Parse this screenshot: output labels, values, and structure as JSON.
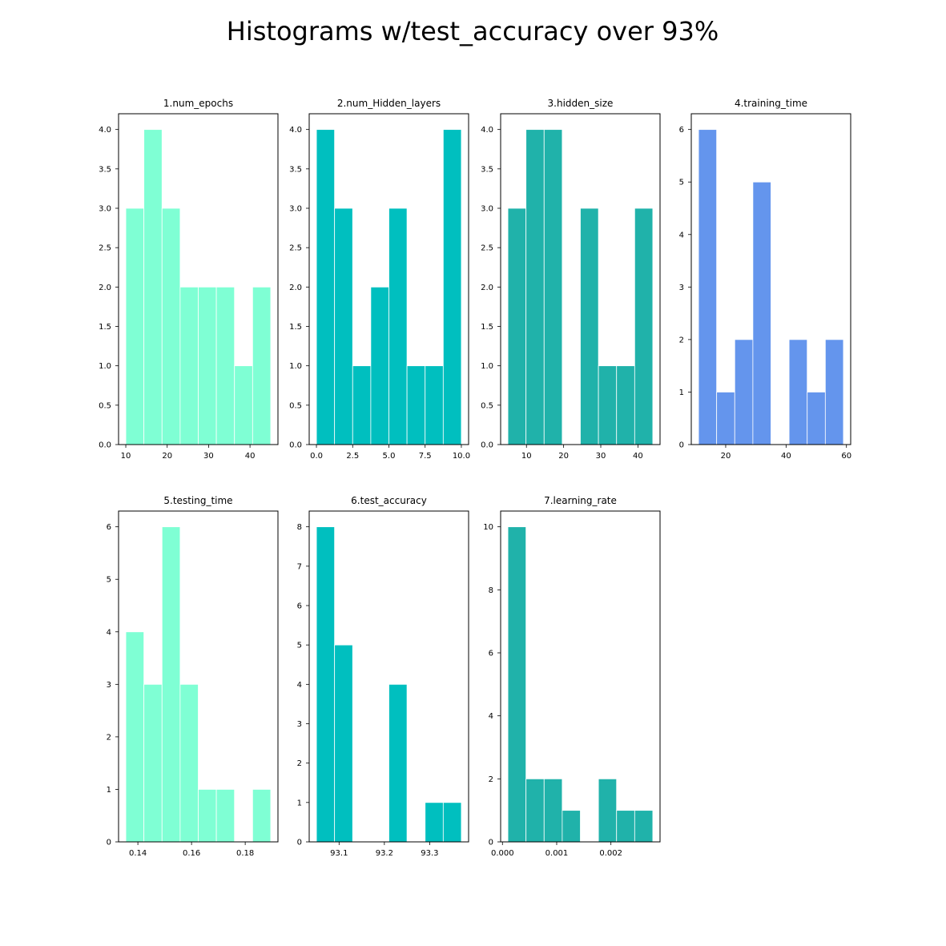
{
  "figure": {
    "suptitle": "Histograms w/test_accuracy over 93%"
  },
  "chart_data": [
    {
      "type": "bar",
      "title": "1.num_epochs",
      "xlabel": "",
      "ylabel": "",
      "color": "#7fffd4",
      "bin_edges": [
        10,
        14.375,
        18.75,
        23.125,
        27.5,
        31.875,
        36.25,
        40.625,
        45
      ],
      "values": [
        3,
        4,
        3,
        2,
        2,
        2,
        1,
        2
      ],
      "xlim": [
        8.25,
        46.75
      ],
      "ylim": [
        0,
        4.2
      ],
      "xticks": [
        10,
        20,
        30,
        40
      ],
      "xtick_labels": [
        "10",
        "20",
        "30",
        "40"
      ],
      "yticks": [
        0,
        0.5,
        1,
        1.5,
        2,
        2.5,
        3,
        3.5,
        4
      ],
      "ytick_labels": [
        "0.0",
        "0.5",
        "1.0",
        "1.5",
        "2.0",
        "2.5",
        "3.0",
        "3.5",
        "4.0"
      ],
      "grid": false
    },
    {
      "type": "bar",
      "title": "2.num_Hidden_layers",
      "xlabel": "",
      "ylabel": "",
      "color": "#00bfbf",
      "bin_edges": [
        0,
        1.25,
        2.5,
        3.75,
        5,
        6.25,
        7.5,
        8.75,
        10
      ],
      "values": [
        4,
        3,
        1,
        2,
        3,
        1,
        1,
        4
      ],
      "xlim": [
        -0.5,
        10.5
      ],
      "ylim": [
        0,
        4.2
      ],
      "xticks": [
        0,
        2.5,
        5,
        7.5,
        10
      ],
      "xtick_labels": [
        "0.0",
        "2.5",
        "5.0",
        "7.5",
        "10.0"
      ],
      "yticks": [
        0,
        0.5,
        1,
        1.5,
        2,
        2.5,
        3,
        3.5,
        4
      ],
      "ytick_labels": [
        "0.0",
        "0.5",
        "1.0",
        "1.5",
        "2.0",
        "2.5",
        "3.0",
        "3.5",
        "4.0"
      ],
      "grid": false
    },
    {
      "type": "bar",
      "title": "3.hidden_size",
      "xlabel": "",
      "ylabel": "",
      "color": "#20b2aa",
      "bin_edges": [
        5,
        9.875,
        14.75,
        19.625,
        24.5,
        29.375,
        34.25,
        39.125,
        44
      ],
      "values": [
        3,
        4,
        4,
        0,
        3,
        1,
        1,
        3
      ],
      "xlim": [
        3.05,
        45.95
      ],
      "ylim": [
        0,
        4.2
      ],
      "xticks": [
        10,
        20,
        30,
        40
      ],
      "xtick_labels": [
        "10",
        "20",
        "30",
        "40"
      ],
      "yticks": [
        0,
        0.5,
        1,
        1.5,
        2,
        2.5,
        3,
        3.5,
        4
      ],
      "ytick_labels": [
        "0.0",
        "0.5",
        "1.0",
        "1.5",
        "2.0",
        "2.5",
        "3.0",
        "3.5",
        "4.0"
      ],
      "grid": false
    },
    {
      "type": "bar",
      "title": "4.training_time",
      "xlabel": "",
      "ylabel": "",
      "color": "#6495ed",
      "bin_edges": [
        11,
        17,
        23,
        29,
        35,
        41,
        47,
        53,
        59
      ],
      "values": [
        6,
        1,
        2,
        5,
        0,
        2,
        1,
        2
      ],
      "xlim": [
        8.6,
        61.4
      ],
      "ylim": [
        0,
        6.3
      ],
      "xticks": [
        20,
        40,
        60
      ],
      "xtick_labels": [
        "20",
        "40",
        "60"
      ],
      "yticks": [
        0,
        1,
        2,
        3,
        4,
        5,
        6
      ],
      "ytick_labels": [
        "0",
        "1",
        "2",
        "3",
        "4",
        "5",
        "6"
      ],
      "grid": false
    },
    {
      "type": "bar",
      "title": "5.testing_time",
      "xlabel": "",
      "ylabel": "",
      "color": "#7fffd4",
      "bin_edges": [
        0.1355,
        0.14225,
        0.149,
        0.15575,
        0.1625,
        0.16925,
        0.176,
        0.18275,
        0.1895
      ],
      "values": [
        4,
        3,
        6,
        3,
        1,
        1,
        0,
        1
      ],
      "xlim": [
        0.1328,
        0.1922
      ],
      "ylim": [
        0,
        6.3
      ],
      "xticks": [
        0.14,
        0.16,
        0.18
      ],
      "xtick_labels": [
        "0.14",
        "0.16",
        "0.18"
      ],
      "yticks": [
        0,
        1,
        2,
        3,
        4,
        5,
        6
      ],
      "ytick_labels": [
        "0",
        "1",
        "2",
        "3",
        "4",
        "5",
        "6"
      ],
      "grid": false
    },
    {
      "type": "bar",
      "title": "6.test_accuracy",
      "xlabel": "",
      "ylabel": "",
      "color": "#00bfbf",
      "bin_edges": [
        93.05,
        93.09,
        93.13,
        93.17,
        93.21,
        93.25,
        93.29,
        93.33,
        93.37
      ],
      "values": [
        8,
        5,
        0,
        0,
        4,
        0,
        1,
        1
      ],
      "xlim": [
        93.034,
        93.386
      ],
      "ylim": [
        0,
        8.4
      ],
      "xticks": [
        93.1,
        93.2,
        93.3
      ],
      "xtick_labels": [
        "93.1",
        "93.2",
        "93.3"
      ],
      "yticks": [
        0,
        1,
        2,
        3,
        4,
        5,
        6,
        7,
        8
      ],
      "ytick_labels": [
        "0",
        "1",
        "2",
        "3",
        "4",
        "5",
        "6",
        "7",
        "8"
      ],
      "grid": false
    },
    {
      "type": "bar",
      "title": "7.learning_rate",
      "xlabel": "",
      "ylabel": "",
      "color": "#20b2aa",
      "bin_edges": [
        0.0001,
        0.000434,
        0.000768,
        0.001102,
        0.001436,
        0.00177,
        0.002104,
        0.002438,
        0.002772
      ],
      "values": [
        10,
        2,
        2,
        1,
        0,
        2,
        1,
        1
      ],
      "xlim": [
        -3.36e-05,
        0.0029056
      ],
      "ylim": [
        0,
        10.5
      ],
      "xticks": [
        0,
        0.001,
        0.002
      ],
      "xtick_labels": [
        "0.000",
        "0.001",
        "0.002"
      ],
      "yticks": [
        0,
        2,
        4,
        6,
        8,
        10
      ],
      "ytick_labels": [
        "0",
        "2",
        "4",
        "6",
        "8",
        "10"
      ],
      "grid": false
    }
  ]
}
